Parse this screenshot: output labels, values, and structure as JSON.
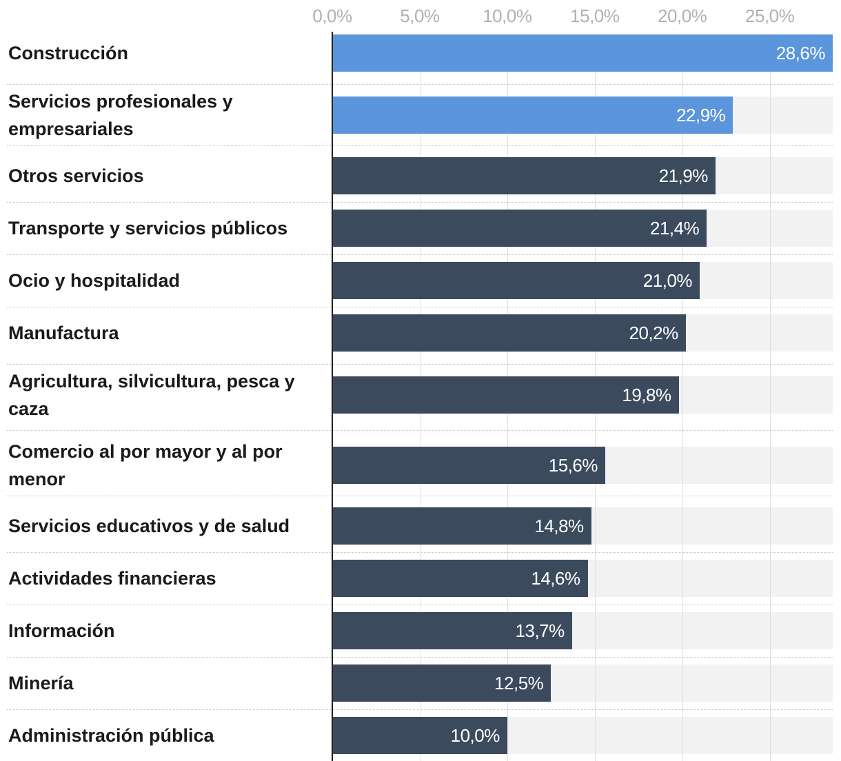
{
  "chart_data": {
    "type": "bar",
    "orientation": "horizontal",
    "categories": [
      "Construcción",
      "Servicios profesionales y empresariales",
      "Otros servicios",
      "Transporte y servicios públicos",
      "Ocio y hospitalidad",
      "Manufactura",
      "Agricultura, silvicultura, pesca y caza",
      "Comercio al por mayor y al por menor",
      "Servicios educativos y de salud",
      "Actividades financieras",
      "Información",
      "Minería",
      "Administración pública"
    ],
    "values": [
      28.6,
      22.9,
      21.9,
      21.4,
      21.0,
      20.2,
      19.8,
      15.6,
      14.8,
      14.6,
      13.7,
      12.5,
      10.0
    ],
    "value_labels": [
      "28,6%",
      "22,9%",
      "21,9%",
      "21,4%",
      "21,0%",
      "20,2%",
      "19,8%",
      "15,6%",
      "14,8%",
      "14,6%",
      "13,7%",
      "12,5%",
      "10,0%"
    ],
    "highlighted": [
      true,
      true,
      false,
      false,
      false,
      false,
      false,
      false,
      false,
      false,
      false,
      false,
      false
    ],
    "xticks": [
      0,
      5,
      10,
      15,
      20,
      25
    ],
    "xtick_labels": [
      "0,0%",
      "5,0%",
      "10,0%",
      "15,0%",
      "20,0%",
      "25,0%"
    ],
    "xlim": [
      0,
      28.6
    ],
    "axis_position": "top",
    "grid": true,
    "title": "",
    "xlabel": "",
    "ylabel": "",
    "colors": {
      "highlight": "#5b95db",
      "default": "#3c4a5e",
      "track": "#f2f2f2",
      "grid": "#e0e0e0",
      "tick_text": "#b0b0b0",
      "label_text": "#1a1a1a"
    }
  }
}
